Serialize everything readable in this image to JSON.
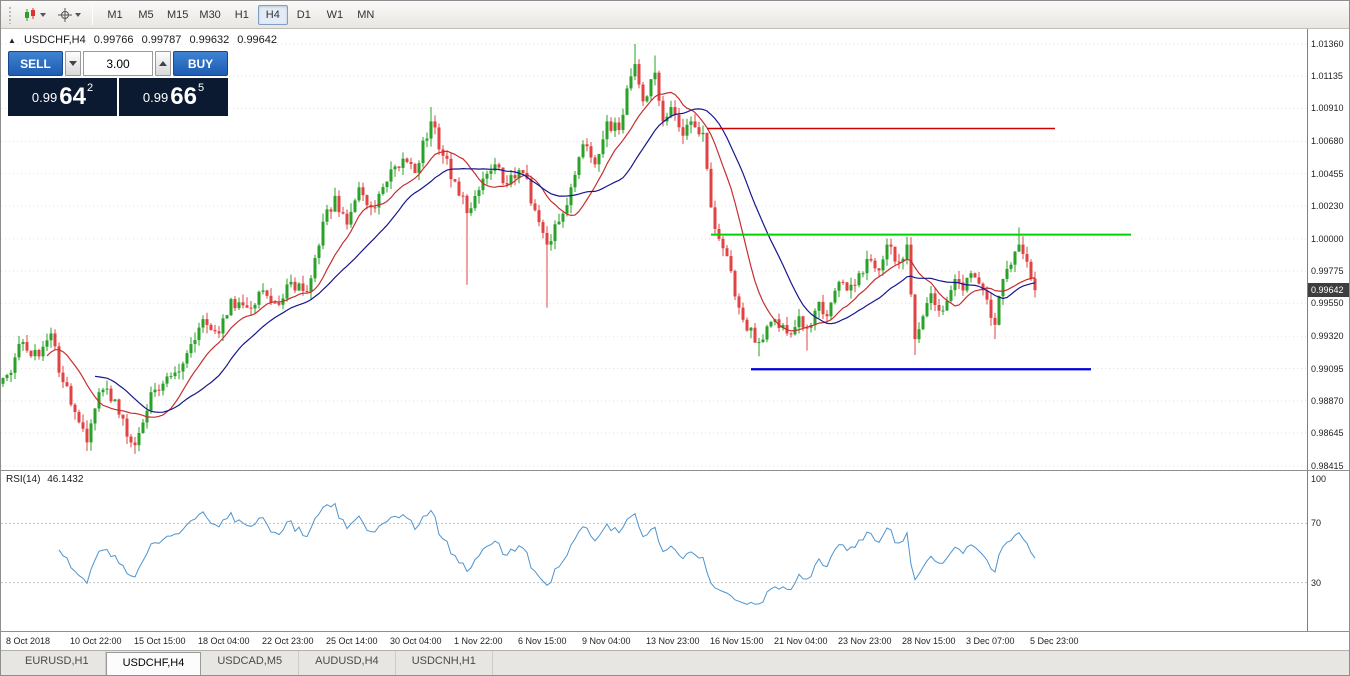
{
  "icons": {
    "symbol_marker": "▲"
  },
  "toolbar": {
    "timeframes": [
      {
        "label": "M1",
        "active": false
      },
      {
        "label": "M5",
        "active": false
      },
      {
        "label": "M15",
        "active": false
      },
      {
        "label": "M30",
        "active": false
      },
      {
        "label": "H1",
        "active": false
      },
      {
        "label": "H4",
        "active": true
      },
      {
        "label": "D1",
        "active": false
      },
      {
        "label": "W1",
        "active": false
      },
      {
        "label": "MN",
        "active": false
      }
    ]
  },
  "chart": {
    "ohlc_header": {
      "symbol": "USDCHF,H4",
      "open": "0.99766",
      "high": "0.99787",
      "low": "0.99632",
      "close": "0.99642"
    },
    "trade_panel": {
      "sell_label": "SELL",
      "buy_label": "BUY",
      "volume": "3.00",
      "sell_price": {
        "prefix": "0.99",
        "big": "64",
        "sup": "2"
      },
      "buy_price": {
        "prefix": "0.99",
        "big": "66",
        "sup": "5"
      }
    },
    "price_axis": {
      "ticks": [
        "1.01360",
        "1.01135",
        "1.00910",
        "1.00680",
        "1.00455",
        "1.00230",
        "1.00000",
        "0.99775",
        "0.99550",
        "0.99320",
        "0.99095",
        "0.98870",
        "0.98645",
        "0.98415"
      ],
      "current": "0.99642"
    }
  },
  "rsi": {
    "label": "RSI(14)",
    "value": "46.1432",
    "ticks": [
      "100",
      "70",
      "30"
    ]
  },
  "time_axis": {
    "labels": [
      "8 Oct 2018",
      "10 Oct 22:00",
      "15 Oct 15:00",
      "18 Oct 04:00",
      "22 Oct 23:00",
      "25 Oct 14:00",
      "30 Oct 04:00",
      "1 Nov 22:00",
      "6 Nov 15:00",
      "9 Nov 04:00",
      "13 Nov 23:00",
      "16 Nov 15:00",
      "21 Nov 04:00",
      "23 Nov 23:00",
      "28 Nov 15:00",
      "3 Dec 07:00",
      "5 Dec 23:00"
    ]
  },
  "tabs": [
    {
      "label": "EURUSD,H1",
      "active": false
    },
    {
      "label": "USDCHF,H4",
      "active": true
    },
    {
      "label": "USDCAD,M5",
      "active": false
    },
    {
      "label": "AUDUSD,H4",
      "active": false
    },
    {
      "label": "USDCNH,H1",
      "active": false
    }
  ],
  "chart_data": {
    "type": "candlestick",
    "symbol": "USDCHF",
    "period": "H4",
    "bars": 259,
    "seed": 12,
    "jitter": 0.0005,
    "wick": 0.0006,
    "ylim": [
      0.98415,
      1.0136
    ],
    "rsi_period": 14,
    "rsi_levels": [
      70,
      30
    ],
    "colors": {
      "up": "#2aa12a",
      "down": "#e04343",
      "rsi": "#4f94cd",
      "grid": "#e3e3e3"
    },
    "moving_averages": [
      {
        "period": 12,
        "color": "#c62f2f"
      },
      {
        "period": 24,
        "color": "#17178f"
      }
    ],
    "lines": [
      {
        "type": "hline",
        "price": 1.0077,
        "from_bar": 176,
        "to_bar": 263,
        "color": "#d10000",
        "width": 1.5
      },
      {
        "type": "hline",
        "price": 1.0003,
        "from_bar": 177,
        "to_bar": 282,
        "color": "#00d300",
        "width": 2
      },
      {
        "type": "hline",
        "price": 0.9909,
        "from_bar": 187,
        "to_bar": 272,
        "color": "#0000e0",
        "width": 2.2
      }
    ],
    "waypoints": [
      [
        1,
        0.9905
      ],
      [
        5,
        0.9928
      ],
      [
        9,
        0.9918
      ],
      [
        12,
        0.9934
      ],
      [
        15,
        0.99
      ],
      [
        19,
        0.9872
      ],
      [
        21,
        0.9858
      ],
      [
        24,
        0.9893
      ],
      [
        28,
        0.9888
      ],
      [
        31,
        0.9862
      ],
      [
        33,
        0.9856
      ],
      [
        37,
        0.9893
      ],
      [
        41,
        0.9904
      ],
      [
        45,
        0.9913
      ],
      [
        50,
        0.9944
      ],
      [
        54,
        0.9934
      ],
      [
        57,
        0.9958
      ],
      [
        61,
        0.9952
      ],
      [
        65,
        0.9964
      ],
      [
        69,
        0.9954
      ],
      [
        72,
        0.997
      ],
      [
        76,
        0.9963
      ],
      [
        80,
        1.0012
      ],
      [
        83,
        1.003
      ],
      [
        86,
        1.001
      ],
      [
        89,
        1.0036
      ],
      [
        92,
        1.0022
      ],
      [
        96,
        1.004
      ],
      [
        100,
        1.0056
      ],
      [
        103,
        1.0046
      ],
      [
        107,
        1.0082
      ],
      [
        110,
        1.0058
      ],
      [
        113,
        1.004
      ],
      [
        116,
        1.0018
      ],
      [
        120,
        1.0042
      ],
      [
        123,
        1.0052
      ],
      [
        126,
        1.0038
      ],
      [
        130,
        1.0046
      ],
      [
        133,
        1.002
      ],
      [
        136,
        0.9996
      ],
      [
        139,
        1.0012
      ],
      [
        142,
        1.0036
      ],
      [
        145,
        1.0066
      ],
      [
        148,
        1.0052
      ],
      [
        151,
        1.0082
      ],
      [
        154,
        1.0076
      ],
      [
        156,
        1.0105
      ],
      [
        158,
        1.0122
      ],
      [
        160,
        1.0096
      ],
      [
        163,
        1.0116
      ],
      [
        165,
        1.0082
      ],
      [
        167,
        1.0092
      ],
      [
        170,
        1.0072
      ],
      [
        172,
        1.0082
      ],
      [
        175,
        1.0074
      ],
      [
        177,
        1.0022
      ],
      [
        179,
        1.0
      ],
      [
        181,
        0.9988
      ],
      [
        184,
        0.9952
      ],
      [
        186,
        0.9936
      ],
      [
        189,
        0.9928
      ],
      [
        192,
        0.9942
      ],
      [
        196,
        0.9934
      ],
      [
        199,
        0.9946
      ],
      [
        201,
        0.9938
      ],
      [
        204,
        0.9956
      ],
      [
        206,
        0.9946
      ],
      [
        209,
        0.997
      ],
      [
        211,
        0.9964
      ],
      [
        214,
        0.9976
      ],
      [
        216,
        0.9986
      ],
      [
        219,
        0.9978
      ],
      [
        221,
        0.9996
      ],
      [
        224,
        0.9984
      ],
      [
        226,
        0.9996
      ],
      [
        228,
        0.993
      ],
      [
        230,
        0.9946
      ],
      [
        232,
        0.9962
      ],
      [
        235,
        0.995
      ],
      [
        238,
        0.9972
      ],
      [
        240,
        0.9964
      ],
      [
        242,
        0.9976
      ],
      [
        245,
        0.9964
      ],
      [
        248,
        0.994
      ],
      [
        250,
        0.9972
      ],
      [
        252,
        0.9982
      ],
      [
        254,
        0.9996
      ],
      [
        256,
        0.9984
      ],
      [
        258,
        0.99642
      ]
    ],
    "spikes": [
      [
        21,
        "low",
        0.9852
      ],
      [
        33,
        "low",
        0.985
      ],
      [
        107,
        "high",
        1.0092
      ],
      [
        116,
        "low",
        0.9968
      ],
      [
        136,
        "low",
        0.9952
      ],
      [
        158,
        "high",
        1.0136
      ],
      [
        163,
        "high",
        1.0128
      ],
      [
        189,
        "low",
        0.9918
      ],
      [
        201,
        "low",
        0.9922
      ],
      [
        228,
        "low",
        0.9919
      ],
      [
        248,
        "low",
        0.993
      ],
      [
        254,
        "high",
        1.0008
      ]
    ]
  }
}
